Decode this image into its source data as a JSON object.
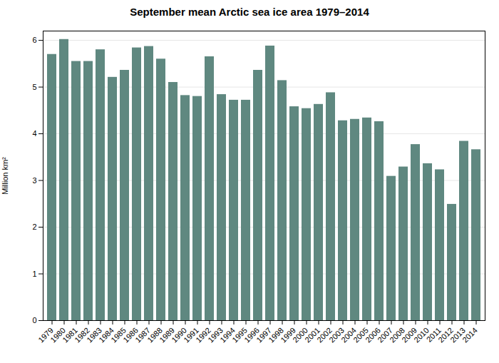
{
  "chart_data": {
    "type": "bar",
    "title": "September mean Arctic sea ice area 1979–2014",
    "ylabel": "Million km²",
    "categories": [
      "1979",
      "1980",
      "1981",
      "1982",
      "1983",
      "1984",
      "1985",
      "1986",
      "1987",
      "1988",
      "1989",
      "1990",
      "1991",
      "1992",
      "1993",
      "1994",
      "1995",
      "1996",
      "1997",
      "1998",
      "1999",
      "2000",
      "2001",
      "2002",
      "2003",
      "2004",
      "2005",
      "2006",
      "2007",
      "2008",
      "2009",
      "2010",
      "2011",
      "2012",
      "2013",
      "2014"
    ],
    "values": [
      5.7,
      6.02,
      5.55,
      5.55,
      5.8,
      5.21,
      5.36,
      5.84,
      5.87,
      5.6,
      5.1,
      4.82,
      4.8,
      5.65,
      4.84,
      4.72,
      4.72,
      5.36,
      5.88,
      5.14,
      4.58,
      4.54,
      4.63,
      4.88,
      4.28,
      4.31,
      4.34,
      4.26,
      3.09,
      3.29,
      3.77,
      3.36,
      3.23,
      2.49,
      3.84,
      3.66
    ],
    "color": "#5f8880",
    "ylim": [
      0,
      6.2
    ],
    "yticks": [
      0,
      1,
      2,
      3,
      4,
      5,
      6
    ],
    "grid": true
  }
}
